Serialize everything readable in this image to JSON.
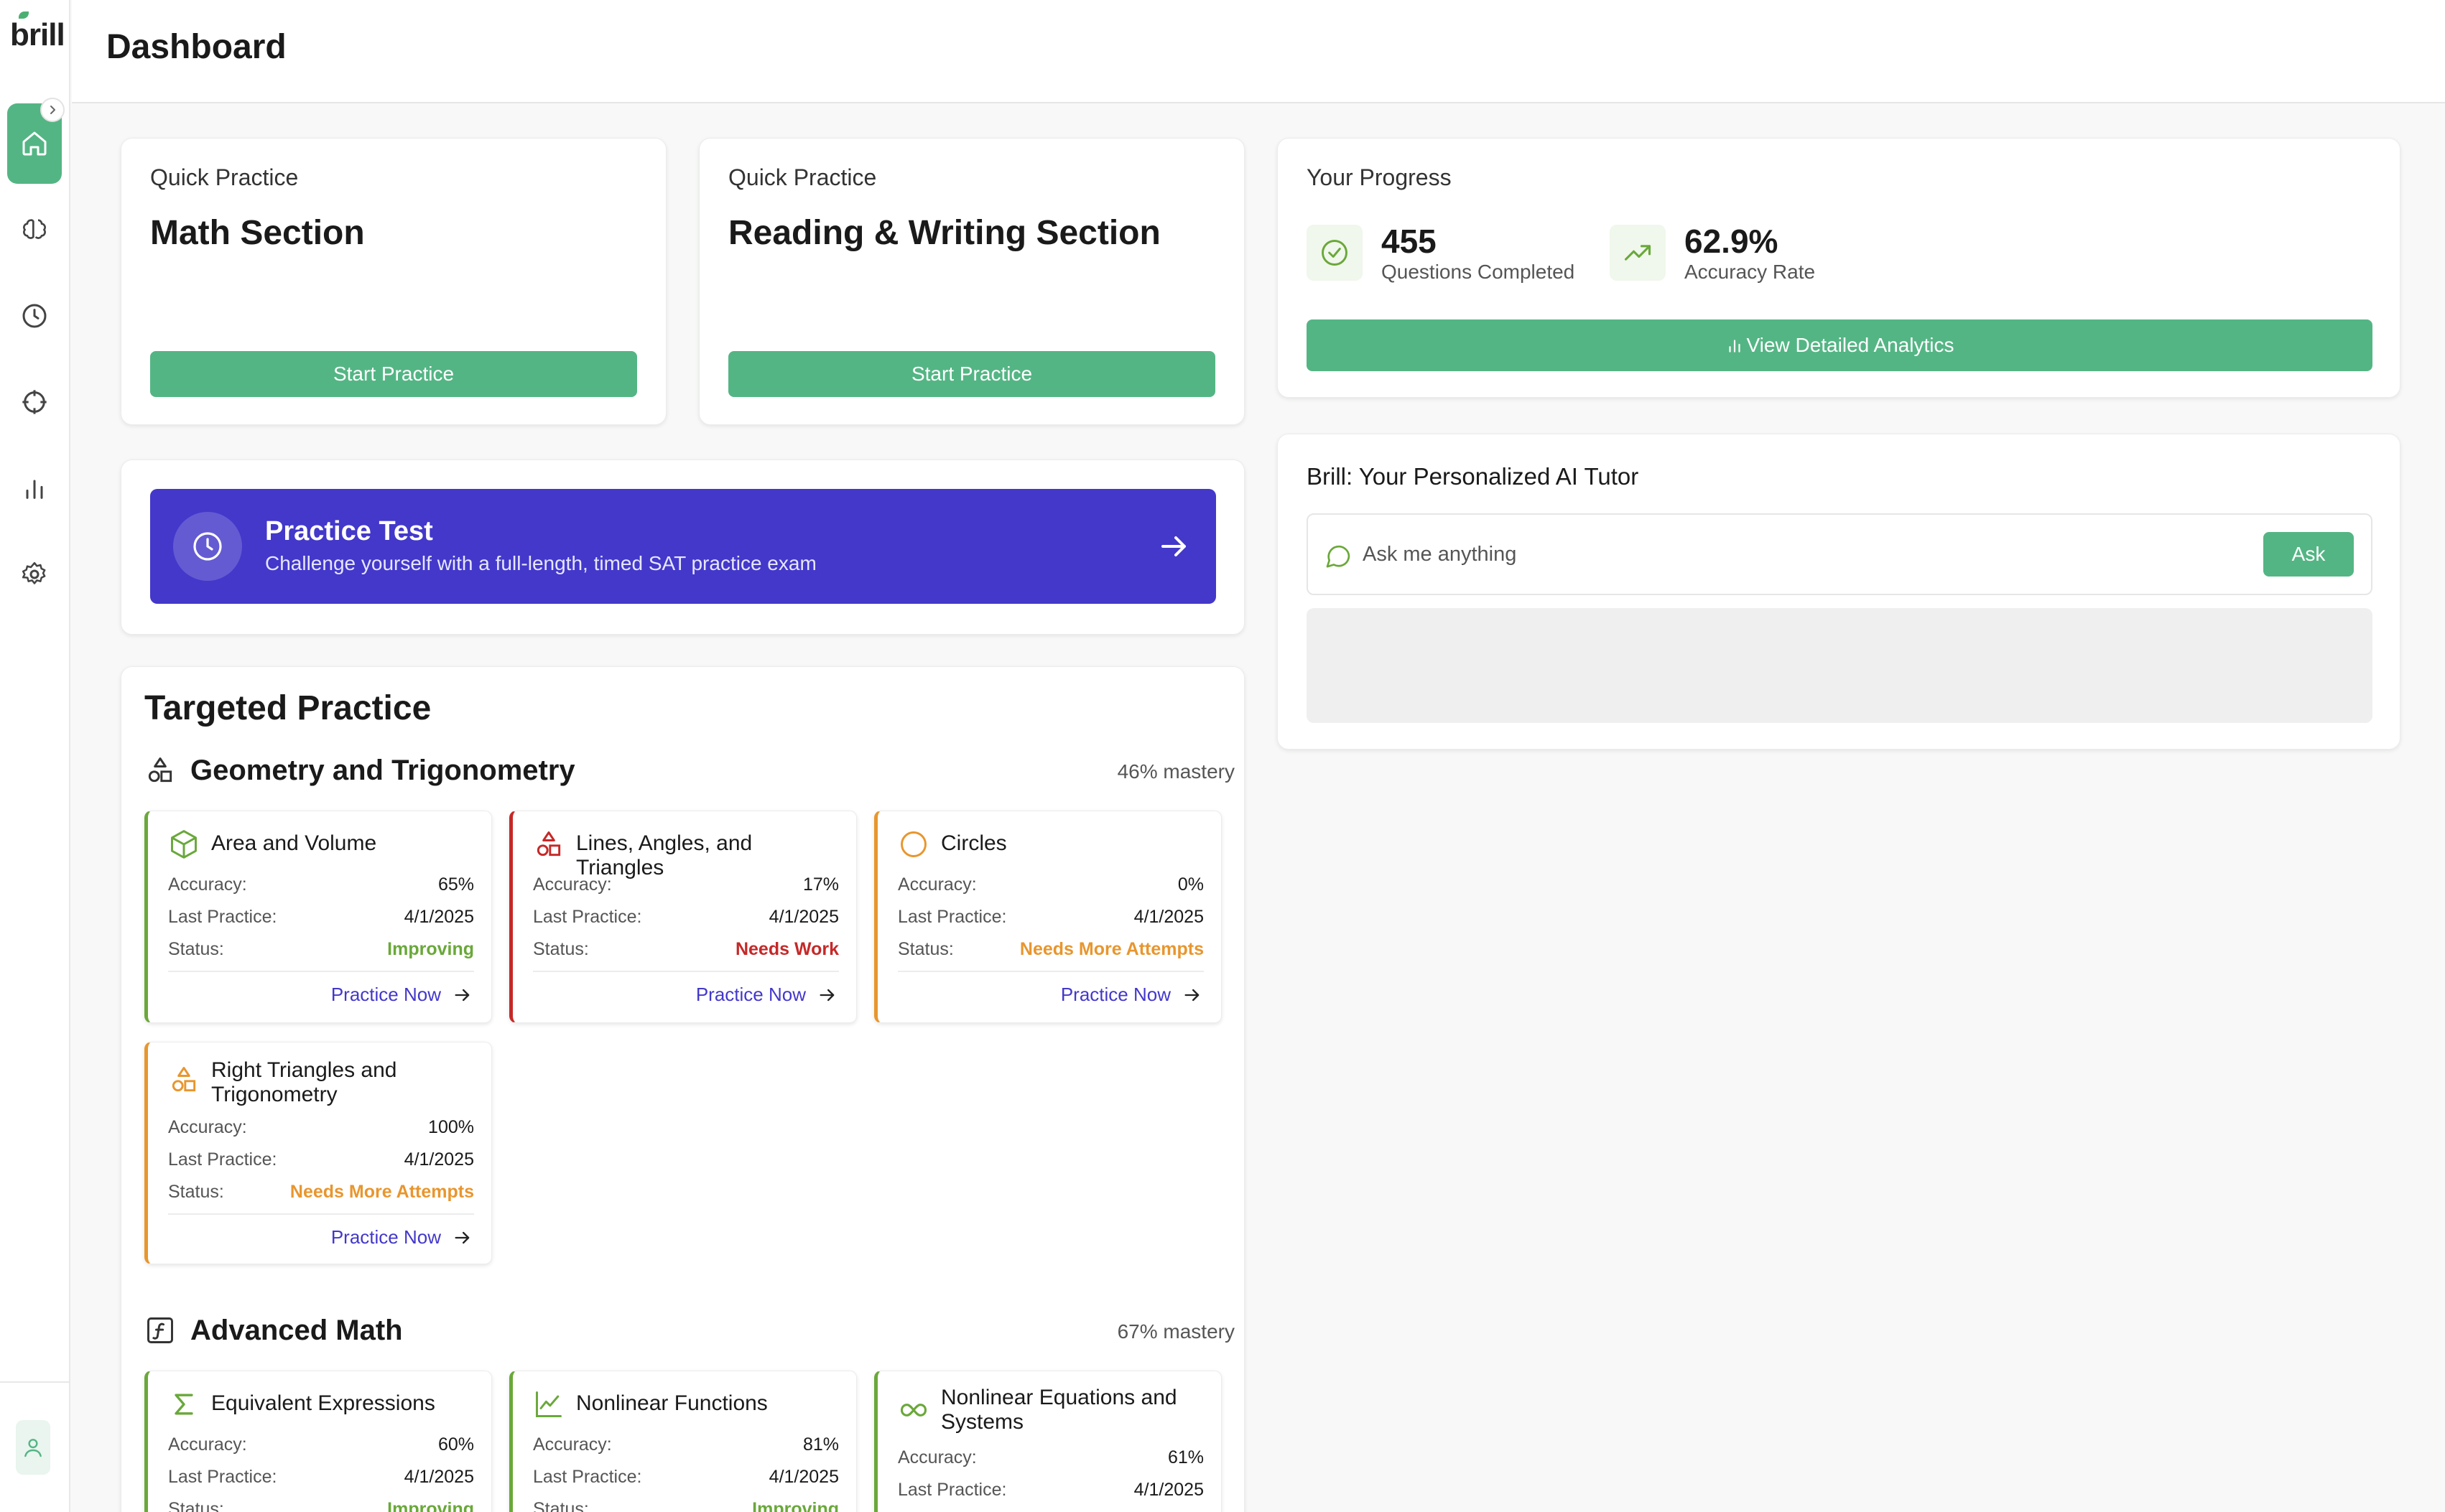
{
  "app": {
    "logo_text": "brill"
  },
  "header": {
    "title": "Dashboard"
  },
  "colors": {
    "accent_green": "#54b584",
    "banner_indigo": "#4338ca",
    "status_improving": "#6aa83a",
    "status_needs_work": "#c62828",
    "status_needs_more": "#e8962e"
  },
  "sidebar": {
    "items": [
      {
        "name": "home",
        "icon": "home-icon",
        "active": true
      },
      {
        "name": "practice",
        "icon": "brain-icon",
        "active": false
      },
      {
        "name": "history",
        "icon": "clock-icon",
        "active": false
      },
      {
        "name": "targets",
        "icon": "crosshair-icon",
        "active": false
      },
      {
        "name": "analytics",
        "icon": "bar-chart-icon",
        "active": false
      },
      {
        "name": "settings",
        "icon": "gear-icon",
        "active": false
      }
    ],
    "profile_icon": "user-icon"
  },
  "quick_practice": [
    {
      "label": "Quick Practice",
      "title": "Math Section",
      "button": "Start Practice"
    },
    {
      "label": "Quick Practice",
      "title": "Reading & Writing Section",
      "button": "Start Practice"
    }
  ],
  "practice_test": {
    "title": "Practice Test",
    "subtitle": "Challenge yourself with a full-length, timed SAT practice exam"
  },
  "targeted_practice": {
    "title": "Targeted Practice",
    "labels": {
      "accuracy": "Accuracy:",
      "last_practice": "Last Practice:",
      "status": "Status:",
      "practice_now": "Practice Now"
    },
    "sections": [
      {
        "title": "Geometry and Trigonometry",
        "mastery": "46% mastery",
        "skills": [
          {
            "name": "Area and Volume",
            "accuracy": "65%",
            "last_practice": "4/1/2025",
            "status": "Improving",
            "status_kind": "improving"
          },
          {
            "name": "Lines, Angles, and Triangles",
            "accuracy": "17%",
            "last_practice": "4/1/2025",
            "status": "Needs Work",
            "status_kind": "needs_work"
          },
          {
            "name": "Circles",
            "accuracy": "0%",
            "last_practice": "4/1/2025",
            "status": "Needs More Attempts",
            "status_kind": "needs_more"
          },
          {
            "name": "Right Triangles and Trigonometry",
            "accuracy": "100%",
            "last_practice": "4/1/2025",
            "status": "Needs More Attempts",
            "status_kind": "needs_more"
          }
        ]
      },
      {
        "title": "Advanced Math",
        "mastery": "67% mastery",
        "skills": [
          {
            "name": "Equivalent Expressions",
            "accuracy": "60%",
            "last_practice": "4/1/2025",
            "status": "Improving",
            "status_kind": "improving"
          },
          {
            "name": "Nonlinear Functions",
            "accuracy": "81%",
            "last_practice": "4/1/2025",
            "status": "Improving",
            "status_kind": "improving"
          },
          {
            "name": "Nonlinear Equations and Systems",
            "accuracy": "61%",
            "last_practice": "4/1/2025"
          }
        ]
      }
    ]
  },
  "progress": {
    "label": "Your Progress",
    "questions_completed": {
      "value": "455",
      "label": "Questions Completed"
    },
    "accuracy_rate": {
      "value": "62.9%",
      "label": "Accuracy Rate"
    },
    "button": "View Detailed Analytics"
  },
  "ai_tutor": {
    "title": "Brill: Your Personalized AI Tutor",
    "placeholder": "Ask me anything",
    "ask_button": "Ask"
  }
}
